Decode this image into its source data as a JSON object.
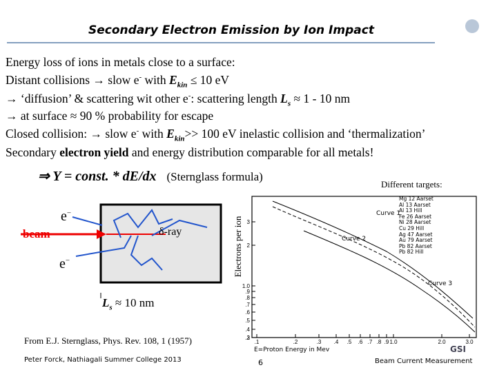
{
  "header": {
    "title": "Secondary Electron Emission by Ion Impact"
  },
  "lines": [
    [
      "Energy loss of ions in metals close to a surface:"
    ],
    [
      "Distant collisions → slow e",
      "-",
      " with ",
      "E",
      "kin",
      " ≤ 10 eV"
    ],
    [
      "→ ‘diffusion’ & scattering wit other e",
      "-",
      ": scattering length ",
      "L",
      "s",
      " ≈ 1 - 10 nm"
    ],
    [
      "→ at surface ≈ 90 % probability for escape"
    ],
    [
      "Closed collision: → slow e",
      "-",
      " with ",
      "E",
      "kin",
      ">> 100 eV inelastic collision and ‘thermalization’"
    ],
    [
      "Secondary ",
      "electron yield",
      " and  energy distribution comparable for all metals!"
    ]
  ],
  "formula": [
    "⇒  Y = const. * dE/dx",
    "(Sternglass formula)"
  ],
  "diagram": {
    "electron_top": [
      "e",
      "−"
    ],
    "beam": "beam",
    "delta_ray": "δ-ray",
    "electron_bottom": [
      "e",
      "−"
    ],
    "length": [
      "L",
      "s",
      "≈ 10 nm"
    ]
  },
  "graph": {
    "y_label": "Electrons per ion",
    "legend_title": "Different targets:",
    "legend": [
      "Mg 12 Aarset",
      "Al 13 Aarset",
      "Al 13 Hill",
      "Fe 26 Aarset",
      "Ni 28 Aarset",
      "Cu 29 Hill",
      "Ag 47 Aarset",
      "Au 79 Aarset",
      "Pb 82 Aarset",
      "Pb 82 Hill"
    ],
    "curves": [
      "Curve 1",
      "Curve 2",
      "Curve 3"
    ],
    "x_label": "E=Proton Energy in Mev",
    "x_ticks": [
      ".1",
      ".2",
      ".3",
      ".4",
      ".5",
      ".6",
      ".7",
      ".8",
      ".9",
      "1.0",
      "2.0",
      "3.0"
    ],
    "y_ticks": [
      "3",
      "2",
      "1.0",
      ".9",
      ".8",
      ".7",
      ".6",
      ".5",
      ".4",
      ".3",
      ".2"
    ]
  },
  "citation": "From E.J. Sternglass, Phys. Rev. 108, 1 (1957)",
  "logo": "GSI",
  "footer": {
    "left": "Peter Forck, Nathiagali Summer College 2013",
    "page": "6",
    "right": "Beam Current Measurement"
  }
}
